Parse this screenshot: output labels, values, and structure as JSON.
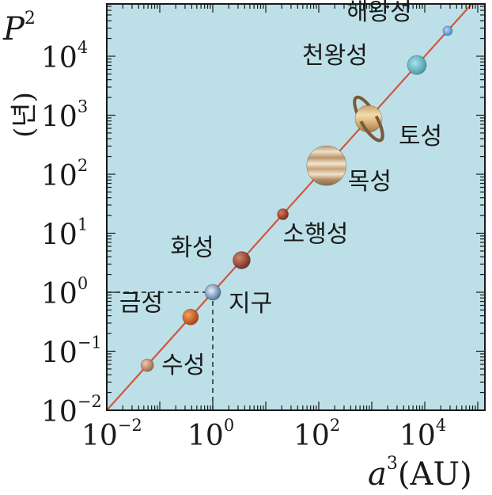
{
  "chart_data": {
    "type": "scatter",
    "xscale": "log",
    "yscale": "log",
    "xlim": [
      0.01,
      1000000
    ],
    "ylim": [
      0.01,
      1000000
    ],
    "x_ticks": [
      {
        "value": 0.01,
        "base": "10",
        "exp": "−2"
      },
      {
        "value": 1,
        "base": "10",
        "exp": "0"
      },
      {
        "value": 100,
        "base": "10",
        "exp": "2"
      },
      {
        "value": 10000,
        "base": "10",
        "exp": "4"
      }
    ],
    "y_ticks": [
      {
        "value": 0.01,
        "base": "10",
        "exp": "−2"
      },
      {
        "value": 0.1,
        "base": "10",
        "exp": "−1"
      },
      {
        "value": 1,
        "base": "10",
        "exp": "0"
      },
      {
        "value": 10,
        "base": "10",
        "exp": "1"
      },
      {
        "value": 100,
        "base": "10",
        "exp": "2"
      },
      {
        "value": 1000,
        "base": "10",
        "exp": "3"
      },
      {
        "value": 10000,
        "base": "10",
        "exp": "4"
      }
    ],
    "xlabel": {
      "var": "a",
      "sup": "3",
      "unit": "(AU)"
    },
    "ylabel": {
      "var": "P",
      "sup": "2",
      "unit": "(년)"
    },
    "fit_line": {
      "slope": 1,
      "color": "#d2553e"
    },
    "reference": {
      "x": 1,
      "y": 1,
      "style": "dashed"
    },
    "series": [
      {
        "points": [
          {
            "label": "수성",
            "x": 0.058,
            "y": 0.058,
            "color": "#c98f6e"
          },
          {
            "label": "금성",
            "x": 0.38,
            "y": 0.38,
            "color": "#d8621f"
          },
          {
            "label": "지구",
            "x": 1,
            "y": 1,
            "color": "#6d8fb3"
          },
          {
            "label": "화성",
            "x": 3.5,
            "y": 3.5,
            "color": "#a8503e"
          },
          {
            "label": "소행성",
            "x": 21,
            "y": 21,
            "color": "#b84a30"
          },
          {
            "label": "목성",
            "x": 140,
            "y": 140,
            "color": "#d9c09a"
          },
          {
            "label": "토성",
            "x": 870,
            "y": 870,
            "color": "#d8b57a"
          },
          {
            "label": "천왕성",
            "x": 7100,
            "y": 7100,
            "color": "#5fb8c8"
          },
          {
            "label": "해왕성",
            "x": 27000,
            "y": 27000,
            "color": "#6aa8e0"
          }
        ]
      }
    ],
    "colors": {
      "background": "#bde0e8",
      "frame": "#1a1a1a",
      "guide": "#1a1a1a"
    }
  }
}
